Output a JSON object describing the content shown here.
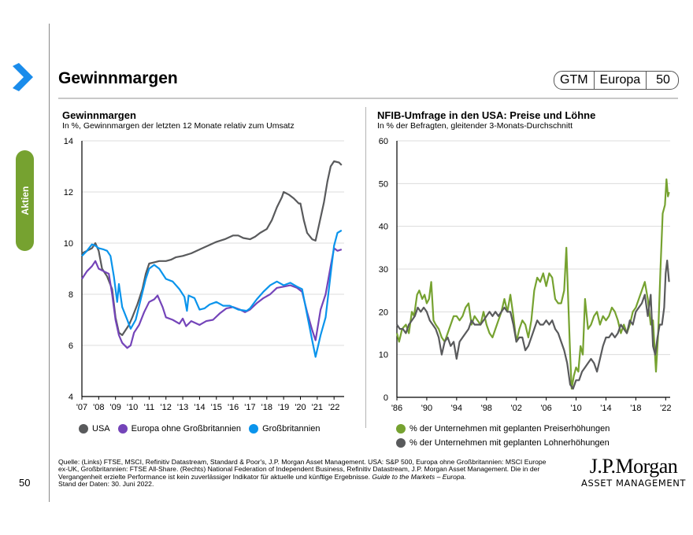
{
  "header": {
    "title": "Gewinnmargen",
    "badge": [
      "GTM",
      "Europa",
      "50"
    ]
  },
  "sidebar": {
    "section_label": "Aktien",
    "page_number": "50"
  },
  "colors": {
    "usa": "#595a5c",
    "europe_ex_uk": "#7444b9",
    "uk": "#0a94ec",
    "prices": "#76a230",
    "wages": "#595a5c",
    "accent_blue": "#1a8ceb",
    "section_green": "#76a230"
  },
  "chart_data": [
    {
      "type": "line",
      "title": "Gewinnmargen",
      "subtitle": "In %, Gewinnmargen der letzten 12 Monate relativ zum Umsatz",
      "xlabel": "",
      "ylabel": "",
      "xlim": [
        2007,
        2022.6
      ],
      "ylim": [
        4,
        14
      ],
      "yticks": [
        4,
        6,
        8,
        10,
        12,
        14
      ],
      "xticks": [
        {
          "v": 2007,
          "label": "'07"
        },
        {
          "v": 2008,
          "label": "'08"
        },
        {
          "v": 2009,
          "label": "'09"
        },
        {
          "v": 2010,
          "label": "'10"
        },
        {
          "v": 2011,
          "label": "'11"
        },
        {
          "v": 2012,
          "label": "'12"
        },
        {
          "v": 2013,
          "label": "'13"
        },
        {
          "v": 2014,
          "label": "'14"
        },
        {
          "v": 2015,
          "label": "'15"
        },
        {
          "v": 2016,
          "label": "'16"
        },
        {
          "v": 2017,
          "label": "'17"
        },
        {
          "v": 2018,
          "label": "'18"
        },
        {
          "v": 2019,
          "label": "'19"
        },
        {
          "v": 2020,
          "label": "'20"
        },
        {
          "v": 2021,
          "label": "'21"
        },
        {
          "v": 2022,
          "label": "'22"
        }
      ],
      "grid": true,
      "legend_position": "bottom",
      "series": [
        {
          "name": "USA",
          "color": "#595a5c",
          "x": [
            2007.0,
            2007.3,
            2007.6,
            2007.8,
            2008.0,
            2008.2,
            2008.5,
            2008.8,
            2009.0,
            2009.2,
            2009.4,
            2009.6,
            2009.8,
            2010.0,
            2010.3,
            2010.6,
            2010.8,
            2011.0,
            2011.3,
            2011.6,
            2012.0,
            2012.3,
            2012.6,
            2013.0,
            2013.5,
            2014.0,
            2014.5,
            2015.0,
            2015.5,
            2016.0,
            2016.3,
            2016.6,
            2017.0,
            2017.3,
            2017.6,
            2018.0,
            2018.3,
            2018.6,
            2018.9,
            2019.0,
            2019.3,
            2019.6,
            2019.9,
            2020.0,
            2020.2,
            2020.4,
            2020.7,
            2020.9,
            2021.1,
            2021.4,
            2021.6,
            2021.8,
            2022.0,
            2022.3,
            2022.45
          ],
          "y": [
            9.6,
            9.7,
            9.8,
            10.0,
            9.7,
            9.0,
            8.7,
            8.2,
            7.1,
            6.5,
            6.4,
            6.6,
            6.8,
            7.1,
            7.6,
            8.2,
            8.8,
            9.2,
            9.25,
            9.3,
            9.3,
            9.35,
            9.45,
            9.5,
            9.6,
            9.75,
            9.9,
            10.05,
            10.15,
            10.3,
            10.3,
            10.2,
            10.15,
            10.25,
            10.4,
            10.55,
            10.9,
            11.4,
            11.8,
            12.0,
            11.9,
            11.75,
            11.55,
            11.55,
            10.9,
            10.4,
            10.15,
            10.1,
            10.7,
            11.6,
            12.4,
            13.0,
            13.2,
            13.15,
            13.05
          ]
        },
        {
          "name": "Europa ohne Großbritannien",
          "color": "#7444b9",
          "x": [
            2007.0,
            2007.3,
            2007.6,
            2007.8,
            2008.0,
            2008.3,
            2008.6,
            2008.8,
            2009.0,
            2009.2,
            2009.4,
            2009.7,
            2009.9,
            2010.1,
            2010.4,
            2010.7,
            2011.0,
            2011.3,
            2011.5,
            2011.8,
            2012.0,
            2012.4,
            2012.8,
            2013.0,
            2013.2,
            2013.5,
            2014.0,
            2014.4,
            2014.8,
            2015.2,
            2015.6,
            2016.0,
            2016.4,
            2016.7,
            2017.0,
            2017.4,
            2017.8,
            2018.2,
            2018.6,
            2019.0,
            2019.4,
            2019.8,
            2020.1,
            2020.4,
            2020.7,
            2020.9,
            2021.2,
            2021.5,
            2021.8,
            2022.0,
            2022.2,
            2022.45
          ],
          "y": [
            8.6,
            8.9,
            9.1,
            9.3,
            9.0,
            8.9,
            8.8,
            8.0,
            7.0,
            6.4,
            6.1,
            5.9,
            6.0,
            6.5,
            6.8,
            7.3,
            7.7,
            7.8,
            7.95,
            7.5,
            7.1,
            7.0,
            6.85,
            7.05,
            6.75,
            6.95,
            6.8,
            6.95,
            7.0,
            7.25,
            7.45,
            7.5,
            7.4,
            7.3,
            7.4,
            7.65,
            7.85,
            8.0,
            8.25,
            8.3,
            8.35,
            8.25,
            8.1,
            7.3,
            6.6,
            6.2,
            7.4,
            8.0,
            9.1,
            9.8,
            9.7,
            9.75
          ]
        },
        {
          "name": "Großbritannien",
          "color": "#0a94ec",
          "x": [
            2007.0,
            2007.3,
            2007.6,
            2007.8,
            2008.0,
            2008.3,
            2008.5,
            2008.7,
            2008.9,
            2009.1,
            2009.2,
            2009.4,
            2009.7,
            2009.9,
            2010.2,
            2010.5,
            2010.8,
            2011.0,
            2011.3,
            2011.6,
            2012.0,
            2012.4,
            2012.8,
            2013.1,
            2013.25,
            2013.35,
            2013.7,
            2014.0,
            2014.3,
            2014.6,
            2015.0,
            2015.4,
            2015.8,
            2016.3,
            2016.8,
            2017.0,
            2017.4,
            2017.8,
            2018.2,
            2018.6,
            2019.0,
            2019.4,
            2019.8,
            2020.1,
            2020.4,
            2020.7,
            2020.9,
            2021.2,
            2021.5,
            2021.8,
            2022.0,
            2022.2,
            2022.45
          ],
          "y": [
            9.5,
            9.7,
            9.95,
            9.9,
            9.8,
            9.75,
            9.7,
            9.5,
            8.7,
            7.7,
            8.4,
            7.5,
            7.0,
            6.65,
            7.0,
            7.8,
            8.6,
            9.0,
            9.15,
            9.0,
            8.6,
            8.5,
            8.2,
            7.9,
            7.35,
            7.95,
            7.85,
            7.4,
            7.45,
            7.6,
            7.7,
            7.55,
            7.55,
            7.4,
            7.35,
            7.45,
            7.8,
            8.1,
            8.35,
            8.5,
            8.35,
            8.45,
            8.3,
            8.2,
            7.2,
            6.2,
            5.55,
            6.4,
            7.1,
            8.8,
            9.9,
            10.4,
            10.5
          ]
        }
      ]
    },
    {
      "type": "line",
      "title": "NFIB-Umfrage in den USA: Preise und Löhne",
      "subtitle": "In % der Befragten, gleitender 3-Monats-Durchschnitt",
      "xlabel": "",
      "ylabel": "",
      "xlim": [
        1986,
        2022.6
      ],
      "ylim": [
        0,
        60
      ],
      "yticks": [
        0,
        10,
        20,
        30,
        40,
        50,
        60
      ],
      "xticks": [
        {
          "v": 1986,
          "label": "'86"
        },
        {
          "v": 1990,
          "label": "'90"
        },
        {
          "v": 1994,
          "label": "'94"
        },
        {
          "v": 1998,
          "label": "'98"
        },
        {
          "v": 2002,
          "label": "'02"
        },
        {
          "v": 2006,
          "label": "'06"
        },
        {
          "v": 2010,
          "label": "'10"
        },
        {
          "v": 2014,
          "label": "'14"
        },
        {
          "v": 2018,
          "label": "'18"
        },
        {
          "v": 2022,
          "label": "'22"
        }
      ],
      "grid": true,
      "legend_position": "bottom",
      "series": [
        {
          "name": "% der Unternehmen mit geplanten Preiserhöhungen",
          "color": "#76a230",
          "x": [
            1986.0,
            1986.3,
            1986.7,
            1987.2,
            1987.6,
            1988.0,
            1988.3,
            1988.7,
            1989.0,
            1989.4,
            1989.7,
            1990.0,
            1990.3,
            1990.6,
            1990.9,
            1991.2,
            1991.6,
            1992.0,
            1992.4,
            1992.8,
            1993.2,
            1993.6,
            1994.0,
            1994.4,
            1994.8,
            1995.2,
            1995.6,
            1996.0,
            1996.4,
            1996.8,
            1997.2,
            1997.6,
            1998.0,
            1998.4,
            1998.8,
            1999.2,
            1999.6,
            2000.0,
            2000.4,
            2000.8,
            2001.2,
            2001.6,
            2002.0,
            2002.4,
            2002.8,
            2003.2,
            2003.6,
            2004.0,
            2004.4,
            2004.8,
            2005.2,
            2005.6,
            2006.0,
            2006.4,
            2006.8,
            2007.2,
            2007.6,
            2008.0,
            2008.4,
            2008.7,
            2008.9,
            2009.2,
            2009.4,
            2009.7,
            2010.0,
            2010.3,
            2010.6,
            2010.9,
            2011.2,
            2011.6,
            2012.0,
            2012.4,
            2012.8,
            2013.2,
            2013.6,
            2014.0,
            2014.4,
            2014.8,
            2015.2,
            2015.6,
            2016.0,
            2016.4,
            2016.8,
            2017.2,
            2017.6,
            2018.0,
            2018.4,
            2018.8,
            2019.2,
            2019.6,
            2020.0,
            2020.3,
            2020.5,
            2020.7,
            2021.0,
            2021.3,
            2021.6,
            2021.9,
            2022.1,
            2022.3,
            2022.45
          ],
          "y": [
            15,
            13,
            16,
            17,
            15,
            20,
            19,
            24,
            25,
            23,
            24,
            22,
            23,
            27,
            18,
            17,
            16,
            14,
            13,
            15,
            17,
            19,
            19,
            18,
            19,
            21,
            22,
            17,
            19,
            18,
            17,
            20,
            17,
            15,
            14,
            16,
            18,
            20,
            23,
            20,
            24,
            19,
            13,
            16,
            18,
            17,
            14,
            18,
            25,
            28,
            27,
            29,
            26,
            29,
            28,
            23,
            22,
            22,
            25,
            35,
            25,
            10,
            2,
            5,
            7,
            6,
            12,
            10,
            23,
            16,
            17,
            19,
            20,
            17,
            19,
            18,
            19,
            21,
            20,
            18,
            15,
            17,
            15,
            17,
            20,
            21,
            23,
            25,
            27,
            23,
            17,
            18,
            12,
            6,
            15,
            30,
            43,
            45,
            51,
            47,
            48
          ]
        },
        {
          "name": "% der Unternehmen mit geplanten Lohnerhöhungen",
          "color": "#595a5c",
          "x": [
            1986.0,
            1986.4,
            1986.8,
            1987.2,
            1987.6,
            1988.0,
            1988.4,
            1988.8,
            1989.2,
            1989.6,
            1990.0,
            1990.4,
            1990.8,
            1991.2,
            1991.6,
            1992.0,
            1992.4,
            1992.8,
            1993.2,
            1993.6,
            1994.0,
            1994.4,
            1994.8,
            1995.2,
            1995.6,
            1996.0,
            1996.4,
            1996.8,
            1997.2,
            1997.6,
            1998.0,
            1998.4,
            1998.8,
            1999.2,
            1999.6,
            2000.0,
            2000.4,
            2000.8,
            2001.2,
            2001.6,
            2002.0,
            2002.4,
            2002.8,
            2003.2,
            2003.6,
            2004.0,
            2004.4,
            2004.8,
            2005.2,
            2005.6,
            2006.0,
            2006.4,
            2006.8,
            2007.2,
            2007.6,
            2008.0,
            2008.4,
            2008.8,
            2009.2,
            2009.6,
            2010.0,
            2010.4,
            2010.8,
            2011.2,
            2011.6,
            2012.0,
            2012.4,
            2012.8,
            2013.2,
            2013.6,
            2014.0,
            2014.4,
            2014.8,
            2015.2,
            2015.6,
            2016.0,
            2016.4,
            2016.8,
            2017.2,
            2017.6,
            2018.0,
            2018.4,
            2018.8,
            2019.2,
            2019.6,
            2020.0,
            2020.3,
            2020.6,
            2020.9,
            2021.2,
            2021.5,
            2021.8,
            2022.0,
            2022.2,
            2022.45
          ],
          "y": [
            17,
            16,
            16,
            15,
            17,
            18,
            19,
            21,
            20,
            21,
            20,
            18,
            17,
            16,
            14,
            10,
            13,
            14,
            12,
            13,
            9,
            13,
            14,
            15,
            16,
            18,
            17,
            17,
            17,
            18,
            19,
            20,
            19,
            20,
            19,
            20,
            21,
            20,
            20,
            17,
            13,
            14,
            14,
            11,
            12,
            14,
            16,
            18,
            17,
            17,
            18,
            17,
            18,
            16,
            15,
            13,
            11,
            8,
            3,
            2,
            4,
            4,
            6,
            7,
            8,
            9,
            8,
            6,
            9,
            12,
            14,
            14,
            15,
            14,
            15,
            17,
            16,
            15,
            18,
            17,
            20,
            21,
            22,
            24,
            19,
            24,
            12,
            10,
            14,
            17,
            17,
            21,
            29,
            32,
            27
          ]
        }
      ]
    }
  ],
  "charts": {
    "left": {
      "title": "Gewinnmargen",
      "subtitle": "In %, Gewinnmargen der letzten 12 Monate relativ zum Umsatz",
      "legend": [
        "USA",
        "Europa ohne Großbritannien",
        "Großbritannien"
      ]
    },
    "right": {
      "title": "NFIB-Umfrage in den USA: Preise und Löhne",
      "subtitle": "In % der Befragten, gleitender 3-Monats-Durchschnitt",
      "legend": [
        "% der Unternehmen mit geplanten Preiserhöhungen",
        "% der Unternehmen mit geplanten Lohnerhöhungen"
      ]
    }
  },
  "footer": {
    "source_line1": "Quelle: (Links) FTSE, MSCI, Refinitiv Datastream, Standard & Poor's, J.P. Morgan Asset Management. USA: S&P 500, Europa ohne Großbritannien: MSCI Europe",
    "source_line2": "ex-UK, Großbritannien: FTSE All-Share. (Rechts) National Federation of Independent Business, Refinitiv Datastream, J.P. Morgan Asset Management. Die in der",
    "source_line3": "Vergangenheit erzielte Performance ist kein zuverlässiger Indikator für aktuelle und künftige Ergebnisse. ",
    "source_line3_italic": "Guide to the Markets – Europa.",
    "source_line4": "Stand der Daten: 30. Juni 2022.",
    "logo_main": "J.P.Morgan",
    "logo_sub": "ASSET MANAGEMENT"
  }
}
